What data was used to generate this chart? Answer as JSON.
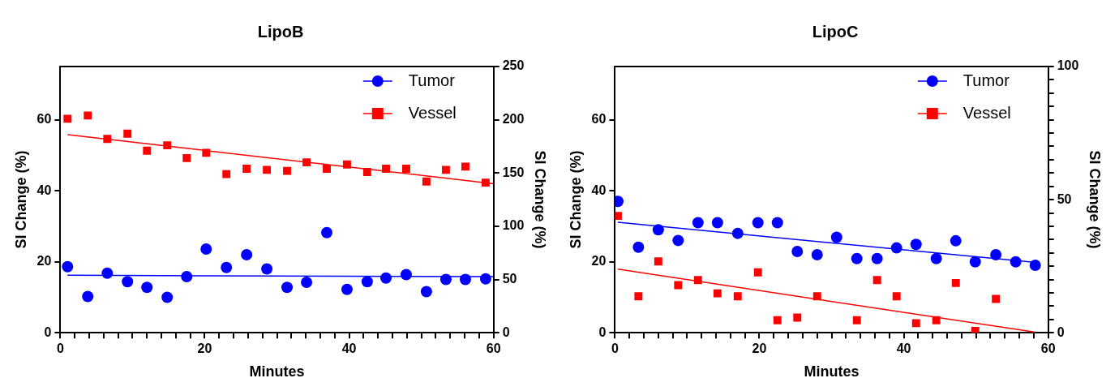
{
  "chart_data": [
    {
      "type": "scatter",
      "title": "LipoB",
      "xlabel": "Minutes",
      "ylabel": "SI Change (%)",
      "y2label": "SI Change (%)",
      "xlim": [
        0,
        60
      ],
      "xticks": [
        0,
        {
          "value": 2,
          "label": null
        },
        {
          "value": 4,
          "label": null
        },
        {
          "value": 6,
          "label": null
        },
        {
          "value": 8,
          "label": null
        },
        {
          "value": 10,
          "label": null
        },
        {
          "value": 12,
          "label": null
        },
        {
          "value": 14,
          "label": null
        },
        {
          "value": 16,
          "label": null
        },
        {
          "value": 18,
          "label": null
        },
        20,
        {
          "value": 22,
          "label": null
        },
        {
          "value": 24,
          "label": null
        },
        {
          "value": 26,
          "label": null
        },
        {
          "value": 28,
          "label": null
        },
        {
          "value": 30,
          "label": null
        },
        {
          "value": 32,
          "label": null
        },
        {
          "value": 34,
          "label": null
        },
        {
          "value": 36,
          "label": null
        },
        {
          "value": 38,
          "label": null
        },
        40,
        {
          "value": 42,
          "label": null
        },
        {
          "value": 44,
          "label": null
        },
        {
          "value": 46,
          "label": null
        },
        {
          "value": 48,
          "label": null
        },
        {
          "value": 50,
          "label": null
        },
        {
          "value": 52,
          "label": null
        },
        {
          "value": 54,
          "label": null
        },
        {
          "value": 56,
          "label": null
        },
        {
          "value": 58,
          "label": null
        },
        60
      ],
      "ylim": [
        0,
        75
      ],
      "yticks": [
        0,
        20,
        40,
        60
      ],
      "y2lim": [
        0,
        250
      ],
      "y2ticks": [
        0,
        50,
        100,
        150,
        200,
        250
      ],
      "grid": false,
      "legend": "top right",
      "x": [
        1.0,
        3.8,
        6.5,
        9.3,
        12.0,
        14.8,
        17.5,
        20.2,
        23.0,
        25.8,
        28.6,
        31.4,
        34.1,
        36.9,
        39.7,
        42.5,
        45.1,
        47.9,
        50.7,
        53.4,
        56.1,
        58.9
      ],
      "series": [
        {
          "name": "Tumor",
          "marker": "circle",
          "color": "#0000ff",
          "values": [
            18.6,
            10.2,
            16.8,
            14.4,
            12.8,
            10.0,
            15.8,
            23.6,
            18.4,
            22.0,
            18.0,
            12.8,
            14.2,
            28.2,
            12.2,
            14.4,
            15.4,
            16.4,
            11.6,
            15.0,
            15.0,
            15.2
          ]
        },
        {
          "name": "Vessel",
          "marker": "square",
          "axis": "y2",
          "color": "#ff0000",
          "values": [
            201,
            204,
            182,
            187,
            171,
            176,
            164,
            169,
            149,
            154,
            153,
            152,
            160,
            154,
            158,
            151,
            154,
            154,
            142,
            153,
            156,
            141
          ]
        },
        {
          "type": "line",
          "marker": "none",
          "line_style": "solid",
          "color": "#0000ff",
          "x": [
            1.0,
            60
          ],
          "values": [
            16.2,
            15.8
          ]
        },
        {
          "type": "line",
          "marker": "none",
          "line_style": "solid",
          "axis": "y2",
          "color": "#ff0000",
          "x": [
            1.0,
            60
          ],
          "values": [
            186,
            140
          ]
        }
      ]
    },
    {
      "type": "scatter",
      "title": "LipoC",
      "xlabel": "Minutes",
      "ylabel": "SI Change (%)",
      "y2label": "SI Change (%)",
      "xlim": [
        0,
        60
      ],
      "xticks": [
        0,
        {
          "value": 2,
          "label": null
        },
        {
          "value": 4,
          "label": null
        },
        {
          "value": 6,
          "label": null
        },
        {
          "value": 8,
          "label": null
        },
        {
          "value": 10,
          "label": null
        },
        {
          "value": 12,
          "label": null
        },
        {
          "value": 14,
          "label": null
        },
        {
          "value": 16,
          "label": null
        },
        {
          "value": 18,
          "label": null
        },
        20,
        {
          "value": 22,
          "label": null
        },
        {
          "value": 24,
          "label": null
        },
        {
          "value": 26,
          "label": null
        },
        {
          "value": 28,
          "label": null
        },
        {
          "value": 30,
          "label": null
        },
        {
          "value": 32,
          "label": null
        },
        {
          "value": 34,
          "label": null
        },
        {
          "value": 36,
          "label": null
        },
        {
          "value": 38,
          "label": null
        },
        40,
        {
          "value": 42,
          "label": null
        },
        {
          "value": 44,
          "label": null
        },
        {
          "value": 46,
          "label": null
        },
        {
          "value": 48,
          "label": null
        },
        {
          "value": 50,
          "label": null
        },
        {
          "value": 52,
          "label": null
        },
        {
          "value": 54,
          "label": null
        },
        {
          "value": 56,
          "label": null
        },
        {
          "value": 58,
          "label": null
        },
        60
      ],
      "ylim": [
        0,
        75
      ],
      "yticks": [
        0,
        20,
        40,
        60
      ],
      "y2lim": [
        0,
        100
      ],
      "y2ticks": [
        0,
        {
          "value": 5,
          "label": null
        },
        {
          "value": 10,
          "label": null
        },
        {
          "value": 15,
          "label": null
        },
        {
          "value": 20,
          "label": null
        },
        {
          "value": 25,
          "label": null
        },
        {
          "value": 30,
          "label": null
        },
        {
          "value": 35,
          "label": null
        },
        {
          "value": 40,
          "label": null
        },
        {
          "value": 45,
          "label": null
        },
        50,
        {
          "value": 55,
          "label": null
        },
        {
          "value": 60,
          "label": null
        },
        {
          "value": 65,
          "label": null
        },
        {
          "value": 70,
          "label": null
        },
        {
          "value": 75,
          "label": null
        },
        {
          "value": 80,
          "label": null
        },
        {
          "value": 85,
          "label": null
        },
        {
          "value": 90,
          "label": null
        },
        {
          "value": 95,
          "label": null
        },
        100
      ],
      "grid": false,
      "legend": "top right",
      "series": [
        {
          "name": "Tumor",
          "marker": "circle",
          "color": "#0000ff",
          "x": [
            0.4,
            3.25,
            6.0,
            8.75,
            11.5,
            14.2,
            17.0,
            19.8,
            22.5,
            25.25,
            28.0,
            30.7,
            33.5,
            36.3,
            39.0,
            41.7,
            44.5,
            47.2,
            49.9,
            52.75,
            55.5,
            58.2
          ],
          "values": [
            37.0,
            24.1,
            29.0,
            26.0,
            31.0,
            31.0,
            28.0,
            31.0,
            31.0,
            22.9,
            22.0,
            26.9,
            20.9,
            20.9,
            23.9,
            24.9,
            20.9,
            25.9,
            20.0,
            22.0,
            20.0,
            19.0
          ]
        },
        {
          "name": "Vessel",
          "marker": "square",
          "axis": "y2",
          "color": "#ff0000",
          "x": [
            0.4,
            3.25,
            6.0,
            8.75,
            11.5,
            14.2,
            17.0,
            19.8,
            22.5,
            25.25,
            28.0,
            33.5,
            36.3,
            39.0,
            41.7,
            44.5,
            47.2,
            49.9,
            52.75
          ],
          "values": [
            43.9,
            13.7,
            26.8,
            17.9,
            19.8,
            14.8,
            13.7,
            22.7,
            4.7,
            5.7,
            13.7,
            4.7,
            19.8,
            13.7,
            3.6,
            4.7,
            18.7,
            0.7,
            12.7
          ]
        },
        {
          "type": "line",
          "marker": "none",
          "line_style": "solid",
          "color": "#0000ff",
          "x": [
            0.4,
            58.2
          ],
          "values": [
            31.1,
            19.8
          ]
        },
        {
          "type": "line",
          "marker": "none",
          "line_style": "solid",
          "axis": "y2",
          "color": "#ff0000",
          "x": [
            0.4,
            58.2
          ],
          "values": [
            23.9,
            0.2
          ]
        }
      ]
    }
  ]
}
